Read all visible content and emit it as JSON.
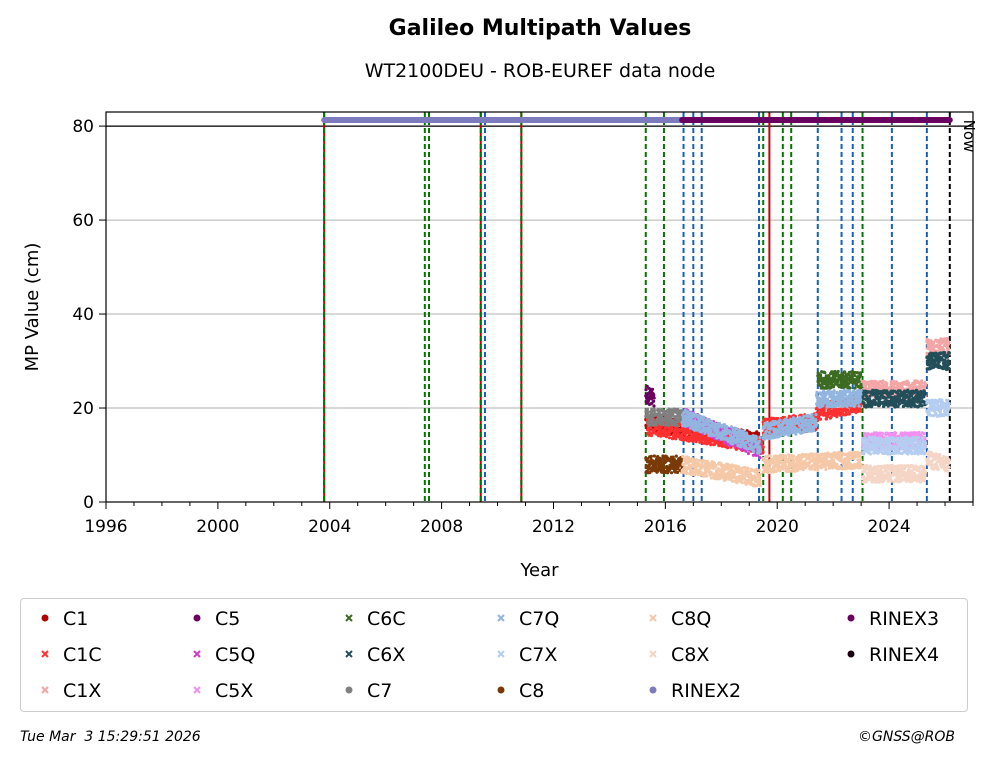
{
  "chart_data": {
    "type": "scatter",
    "title": "Galileo Multipath Values",
    "subtitle": "WT2100DEU - ROB-EUREF data node",
    "xlabel": "Year",
    "ylabel": "MP Value (cm)",
    "xlim": [
      1996,
      2027
    ],
    "ylim": [
      0,
      83
    ],
    "x_ticks": [
      1996,
      2000,
      2004,
      2008,
      2012,
      2016,
      2020,
      2024
    ],
    "y_ticks": [
      0,
      20,
      40,
      60,
      80
    ],
    "grid": "horizontal",
    "reference_line_y": 80,
    "now_label": "Now",
    "now_x": 2026.17,
    "legend_placement": "bottom",
    "vertical_events": [
      {
        "x": 2003.8,
        "color": "#cc0000",
        "style": "solid"
      },
      {
        "x": 2003.8,
        "color": "#007700",
        "style": "dashed"
      },
      {
        "x": 2007.4,
        "color": "#007700",
        "style": "dashed"
      },
      {
        "x": 2007.55,
        "color": "#007700",
        "style": "dashed"
      },
      {
        "x": 2009.4,
        "color": "#cc0000",
        "style": "solid"
      },
      {
        "x": 2009.4,
        "color": "#007700",
        "style": "dashed"
      },
      {
        "x": 2009.55,
        "color": "#1560bd",
        "style": "dashed"
      },
      {
        "x": 2010.85,
        "color": "#cc0000",
        "style": "solid"
      },
      {
        "x": 2010.85,
        "color": "#007700",
        "style": "dashed"
      },
      {
        "x": 2015.3,
        "color": "#007700",
        "style": "dashed"
      },
      {
        "x": 2015.95,
        "color": "#007700",
        "style": "dashed"
      },
      {
        "x": 2016.65,
        "color": "#1560bd",
        "style": "dashed"
      },
      {
        "x": 2017.0,
        "color": "#1560bd",
        "style": "dashed"
      },
      {
        "x": 2017.3,
        "color": "#1560bd",
        "style": "dashed"
      },
      {
        "x": 2019.35,
        "color": "#1560bd",
        "style": "dashed"
      },
      {
        "x": 2019.5,
        "color": "#007700",
        "style": "dashed"
      },
      {
        "x": 2019.72,
        "color": "#cc0000",
        "style": "solid"
      },
      {
        "x": 2020.2,
        "color": "#007700",
        "style": "dashed"
      },
      {
        "x": 2020.5,
        "color": "#007700",
        "style": "dashed"
      },
      {
        "x": 2021.45,
        "color": "#1560bd",
        "style": "dashed"
      },
      {
        "x": 2022.3,
        "color": "#1560bd",
        "style": "dashed"
      },
      {
        "x": 2022.7,
        "color": "#1560bd",
        "style": "dashed"
      },
      {
        "x": 2023.05,
        "color": "#007700",
        "style": "dashed"
      },
      {
        "x": 2024.1,
        "color": "#1560bd",
        "style": "dashed"
      },
      {
        "x": 2025.35,
        "color": "#1560bd",
        "style": "dashed"
      },
      {
        "x": 2026.17,
        "color": "#000000",
        "style": "dashed"
      }
    ],
    "rinex_bars": [
      {
        "name": "RINEX2",
        "x_start": 2003.8,
        "x_end": 2016.6,
        "y": 81.3,
        "color": "#7b7bbd"
      },
      {
        "name": "RINEX3",
        "x_start": 2016.6,
        "x_end": 2026.17,
        "y": 81.3,
        "color": "#6a0060"
      }
    ],
    "series": [
      {
        "name": "C1",
        "marker": "dot",
        "color": "#b00000",
        "segments": [
          [
            2015.3,
            2019.4,
            17,
            13
          ]
        ]
      },
      {
        "name": "C1C",
        "marker": "x",
        "color": "#ff3030",
        "segments": [
          [
            2015.35,
            2016.6,
            16,
            15
          ],
          [
            2016.6,
            2019.5,
            15,
            12
          ],
          [
            2019.5,
            2021.4,
            16,
            17
          ],
          [
            2021.4,
            2023.0,
            19,
            21
          ]
        ]
      },
      {
        "name": "C1X",
        "marker": "x",
        "color": "#f4a6a6",
        "segments": [
          [
            2023.05,
            2025.3,
            24,
            24
          ],
          [
            2025.35,
            2026.15,
            33,
            33
          ]
        ]
      },
      {
        "name": "C5",
        "marker": "dot",
        "color": "#6a0060",
        "segments": [
          [
            2015.3,
            2015.6,
            23,
            22
          ]
        ]
      },
      {
        "name": "C5Q",
        "marker": "x",
        "color": "#d03cd0",
        "segments": [
          [
            2016.7,
            2019.4,
            18,
            11
          ]
        ]
      },
      {
        "name": "C5X",
        "marker": "x",
        "color": "#f090f0",
        "segments": [
          [
            2023.05,
            2025.3,
            13,
            13
          ]
        ]
      },
      {
        "name": "C6C",
        "marker": "x",
        "color": "#3d6b22",
        "segments": [
          [
            2021.45,
            2023.0,
            26,
            26
          ]
        ]
      },
      {
        "name": "C6X",
        "marker": "x",
        "color": "#234f5a",
        "segments": [
          [
            2023.05,
            2025.3,
            22,
            22
          ],
          [
            2025.35,
            2026.15,
            30,
            30
          ]
        ]
      },
      {
        "name": "C7",
        "marker": "dot",
        "color": "#808080",
        "segments": [
          [
            2015.3,
            2016.6,
            18,
            18
          ]
        ]
      },
      {
        "name": "C7Q",
        "marker": "x",
        "color": "#93b5e0",
        "segments": [
          [
            2016.6,
            2019.4,
            18,
            12
          ],
          [
            2019.5,
            2021.4,
            15,
            17
          ],
          [
            2021.4,
            2023.0,
            22,
            22
          ]
        ]
      },
      {
        "name": "C7X",
        "marker": "x",
        "color": "#b5cdf0",
        "segments": [
          [
            2023.05,
            2025.3,
            12,
            12
          ],
          [
            2025.35,
            2026.15,
            20,
            20
          ]
        ]
      },
      {
        "name": "C8",
        "marker": "dot",
        "color": "#7a3a08",
        "segments": [
          [
            2015.3,
            2016.6,
            8,
            8
          ]
        ]
      },
      {
        "name": "C8Q",
        "marker": "x",
        "color": "#f5c8a8",
        "segments": [
          [
            2016.6,
            2019.4,
            8,
            5
          ],
          [
            2019.5,
            2023.0,
            8,
            9
          ]
        ]
      },
      {
        "name": "C8X",
        "marker": "x",
        "color": "#f5d5c5",
        "segments": [
          [
            2023.05,
            2025.3,
            6,
            6
          ],
          [
            2025.35,
            2026.15,
            9,
            8
          ]
        ]
      },
      {
        "name": "RINEX2",
        "marker": "dot",
        "color": "#7b7bbd",
        "segments": []
      },
      {
        "name": "RINEX3",
        "marker": "dot",
        "color": "#6a0060",
        "segments": []
      },
      {
        "name": "RINEX4",
        "marker": "dot",
        "color": "#1a0010",
        "segments": []
      }
    ]
  },
  "footer": {
    "timestamp": "Tue Mar  3 15:29:51 2026",
    "credit": "©GNSS@ROB"
  }
}
